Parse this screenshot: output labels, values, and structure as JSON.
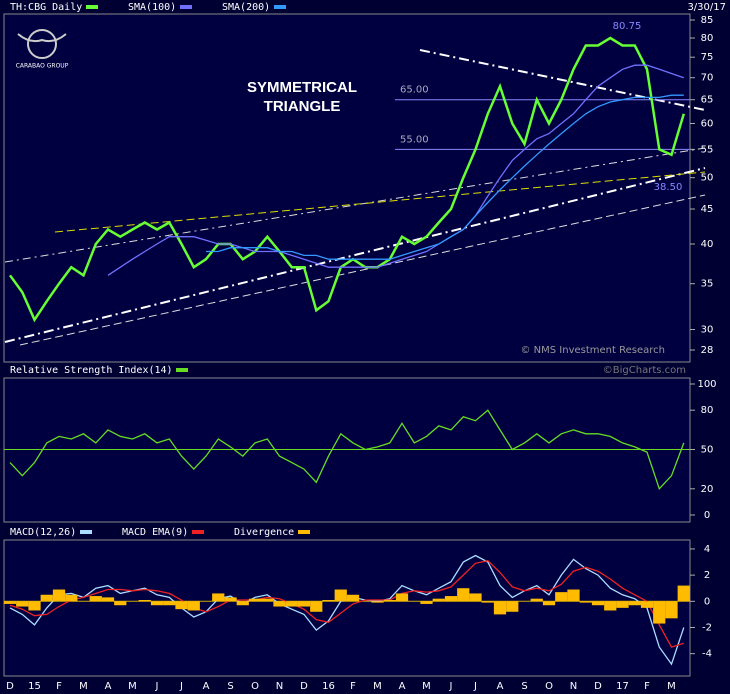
{
  "header": {
    "date": "3/30/17",
    "logo": "CARABAO GROUP",
    "copyright": "© NMS Investment Research",
    "source": "©BigCharts.com"
  },
  "x_axis": {
    "labels": [
      "D",
      "15",
      "F",
      "M",
      "A",
      "M",
      "J",
      "J",
      "A",
      "S",
      "O",
      "N",
      "D",
      "16",
      "F",
      "M",
      "A",
      "M",
      "J",
      "J",
      "A",
      "S",
      "O",
      "N",
      "D",
      "17",
      "F",
      "M"
    ]
  },
  "chart_data": [
    {
      "type": "line",
      "log_scale": true,
      "ylim": [
        28,
        85
      ],
      "yticks": [
        28,
        30,
        35,
        40,
        45,
        50,
        55,
        60,
        65,
        70,
        75,
        80,
        85
      ],
      "annotations": {
        "title": [
          "SYMMETRICAL",
          "TRIANGLE"
        ],
        "high": "80.75",
        "low": "38.50"
      },
      "levels": [
        {
          "value": 65,
          "label": "65.00"
        },
        {
          "value": 55,
          "label": "55.00"
        }
      ],
      "series": [
        {
          "name": "TH:CBG Daily",
          "color": "#66ff33",
          "values": [
            36,
            34,
            31,
            33,
            35,
            37,
            36,
            40,
            42,
            41,
            42,
            43,
            42,
            43,
            40,
            37,
            38,
            40,
            40,
            38,
            39,
            41,
            39,
            37,
            37,
            32,
            33,
            37,
            38,
            37,
            37,
            38,
            41,
            40,
            41,
            43,
            45,
            50,
            55,
            62,
            68,
            60,
            56,
            65,
            60,
            65,
            72,
            78,
            78,
            80,
            78,
            78,
            72,
            55,
            54,
            62
          ]
        },
        {
          "name": "SMA(100)",
          "color": "#7070ff",
          "values": [
            null,
            null,
            null,
            null,
            null,
            null,
            null,
            null,
            36,
            37,
            38,
            39,
            40,
            41,
            41,
            41,
            40.5,
            40,
            40,
            39.5,
            39,
            39,
            39,
            38.5,
            38,
            37.5,
            37,
            37,
            37,
            37,
            37,
            37.5,
            38,
            38.5,
            39,
            40,
            41,
            42,
            44,
            47,
            50,
            53,
            55,
            57,
            58,
            60,
            62,
            65,
            68,
            70,
            72,
            73,
            73,
            72,
            71,
            70
          ]
        },
        {
          "name": "SMA(200)",
          "color": "#3399ff",
          "values": [
            null,
            null,
            null,
            null,
            null,
            null,
            null,
            null,
            null,
            null,
            null,
            null,
            null,
            null,
            null,
            null,
            39,
            39,
            39.5,
            39.5,
            39.5,
            39.5,
            39,
            39,
            38.5,
            38.5,
            38,
            38,
            38,
            38,
            38,
            38,
            38.5,
            39,
            39.5,
            40,
            41,
            42,
            44,
            46,
            48,
            50,
            52,
            54,
            56,
            58,
            60,
            62,
            63.5,
            64.5,
            65,
            65.5,
            65.5,
            65.5,
            66,
            66
          ]
        }
      ]
    },
    {
      "type": "line",
      "ylim": [
        0,
        100
      ],
      "yticks": [
        0,
        20,
        50,
        80,
        100
      ],
      "midline": 50,
      "series": [
        {
          "name": "Relative Strength Index(14)",
          "color": "#66dd22",
          "values": [
            40,
            30,
            40,
            55,
            60,
            58,
            62,
            55,
            65,
            60,
            58,
            62,
            55,
            58,
            45,
            35,
            45,
            58,
            52,
            45,
            55,
            58,
            45,
            40,
            35,
            25,
            45,
            62,
            55,
            50,
            52,
            55,
            70,
            55,
            60,
            68,
            65,
            75,
            72,
            80,
            65,
            50,
            55,
            62,
            55,
            62,
            65,
            62,
            62,
            60,
            55,
            52,
            48,
            20,
            30,
            55
          ]
        }
      ]
    },
    {
      "type": "line",
      "ylim": [
        -5.4,
        4.4
      ],
      "yticks": [
        -4,
        -2,
        0,
        2,
        4
      ],
      "midline": 0,
      "series": [
        {
          "name": "MACD(12,26)",
          "color": "#aaddff",
          "values": [
            -0.5,
            -1,
            -1.8,
            -0.5,
            0.5,
            0.6,
            0.3,
            1.0,
            1.2,
            0.6,
            0.8,
            1.0,
            0.5,
            0.3,
            -0.5,
            -1.2,
            -0.8,
            0.2,
            0.4,
            -0.2,
            0.3,
            0.5,
            -0.2,
            -0.6,
            -1.0,
            -2.2,
            -1.5,
            0,
            0.3,
            0.1,
            0,
            0.2,
            1.2,
            0.8,
            0.5,
            1.0,
            1.5,
            3.0,
            3.5,
            3.0,
            1.2,
            0.3,
            0.8,
            1.2,
            0.5,
            2.0,
            3.2,
            2.5,
            2.0,
            1.0,
            0.5,
            0.2,
            -0.5,
            -3.5,
            -4.8,
            -2.0
          ]
        },
        {
          "name": "MACD EMA(9)",
          "color": "#ee2222",
          "values": [
            -0.3,
            -0.6,
            -1.1,
            -1.0,
            -0.4,
            0.1,
            0.3,
            0.6,
            0.9,
            0.9,
            0.8,
            0.9,
            0.8,
            0.6,
            0.1,
            -0.5,
            -0.8,
            -0.4,
            0.1,
            0.1,
            0.1,
            0.3,
            0.2,
            -0.2,
            -0.6,
            -1.4,
            -1.6,
            -0.9,
            -0.2,
            0.1,
            0.1,
            0.1,
            0.6,
            0.8,
            0.7,
            0.8,
            1.1,
            2.0,
            2.9,
            3.1,
            2.2,
            1.1,
            0.8,
            1.0,
            0.8,
            1.3,
            2.3,
            2.6,
            2.3,
            1.7,
            1.0,
            0.5,
            0,
            -1.8,
            -3.5,
            -3.2
          ]
        },
        {
          "name": "Divergence",
          "color": "#ffbb00",
          "bars": true,
          "values": [
            -0.2,
            -0.4,
            -0.7,
            0.5,
            0.9,
            0.5,
            0,
            0.4,
            0.3,
            -0.3,
            0,
            0.1,
            -0.3,
            -0.3,
            -0.6,
            -0.7,
            0,
            0.6,
            0.3,
            -0.3,
            0.2,
            0.2,
            -0.4,
            -0.4,
            -0.4,
            -0.8,
            0.1,
            0.9,
            0.5,
            0,
            -0.1,
            0.1,
            0.6,
            0,
            -0.2,
            0.2,
            0.4,
            1.0,
            0.6,
            -0.1,
            -1.0,
            -0.8,
            0,
            0.2,
            -0.3,
            0.7,
            0.9,
            -0.1,
            -0.3,
            -0.7,
            -0.5,
            -0.3,
            -0.5,
            -1.7,
            -1.3,
            1.2
          ]
        }
      ]
    }
  ]
}
